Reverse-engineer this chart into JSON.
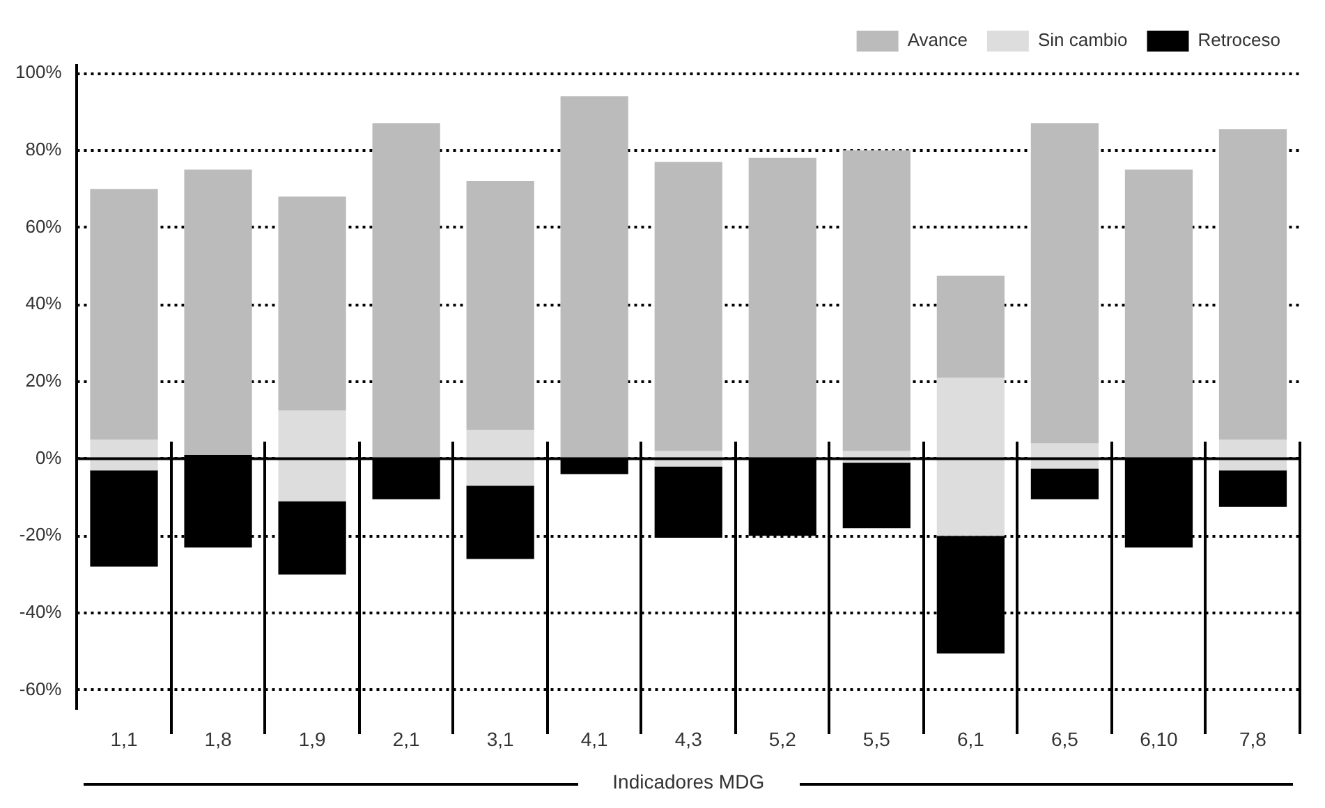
{
  "chart_data": {
    "type": "bar",
    "xlabel": "Indicadores MDG",
    "categories": [
      "1,1",
      "1,8",
      "1,9",
      "2,1",
      "3,1",
      "4,1",
      "4,3",
      "5,2",
      "5,5",
      "6,1",
      "6,5",
      "6,10",
      "7,8"
    ],
    "series": [
      {
        "name": "Avance",
        "color": "#bbbbbb",
        "base": [
          5,
          1,
          12.5,
          0,
          7.5,
          0,
          2,
          0,
          2,
          21,
          4,
          0,
          5
        ],
        "values": [
          65,
          74,
          55.5,
          87,
          64.5,
          94,
          75,
          78,
          78,
          26.5,
          83,
          75,
          80.5
        ]
      },
      {
        "name": "Sin cambio",
        "color": "#dddddd",
        "base": [
          -3,
          null,
          -11,
          null,
          -7,
          null,
          -2,
          null,
          -1,
          -20,
          -2.5,
          null,
          -3
        ],
        "values": [
          8,
          null,
          23.5,
          null,
          14.5,
          null,
          4,
          null,
          3,
          41,
          6.5,
          null,
          8
        ]
      },
      {
        "name": "Retroceso",
        "color": "#000000",
        "base": [
          -28,
          -23,
          -30,
          -10.5,
          -26,
          -4,
          -20.5,
          -20,
          -18,
          -50.5,
          -10.5,
          -23,
          -12.5
        ],
        "values": [
          25,
          24,
          19,
          10.5,
          19,
          4,
          18.5,
          20,
          17,
          30.5,
          8,
          23,
          9.5
        ]
      }
    ],
    "ylim": [
      -65,
      102
    ],
    "yticks": [
      {
        "value": -60,
        "label": "-60%"
      },
      {
        "value": -40,
        "label": "-40%"
      },
      {
        "value": -20,
        "label": "-20%"
      },
      {
        "value": 0,
        "label": "0%"
      },
      {
        "value": 20,
        "label": "20%"
      },
      {
        "value": 40,
        "label": "40%"
      },
      {
        "value": 60,
        "label": "60%"
      },
      {
        "value": 80,
        "label": "80%"
      },
      {
        "value": 100,
        "label": "100%"
      }
    ],
    "ref_lines": [
      {
        "axis": "y",
        "value": 0,
        "color": "#000000",
        "line_style": "solid"
      }
    ],
    "grid": "y",
    "legend": "top right"
  }
}
